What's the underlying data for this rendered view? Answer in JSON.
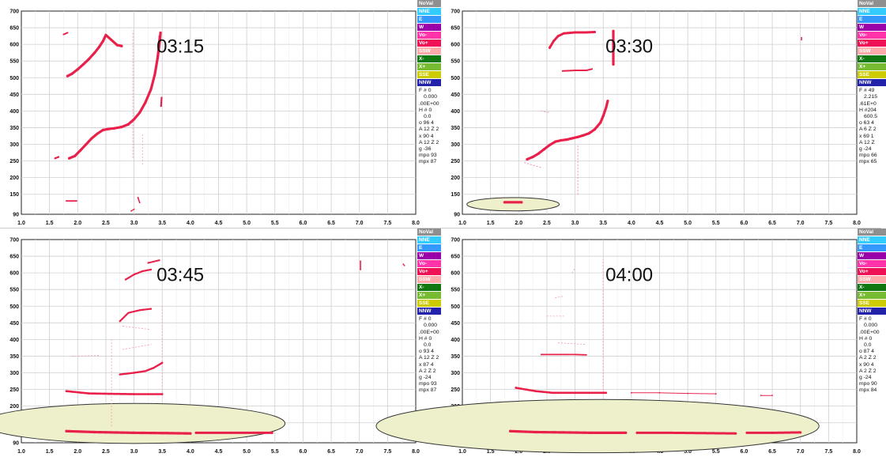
{
  "legend_items": [
    {
      "label": "NoVal",
      "color": "#8f8f8f"
    },
    {
      "label": "NNE",
      "color": "#33ccff"
    },
    {
      "label": "E",
      "color": "#3399ff"
    },
    {
      "label": "W",
      "color": "#9900aa"
    },
    {
      "label": "Vo-",
      "color": "#ff33aa"
    },
    {
      "label": "Vo+",
      "color": "#ee1155"
    },
    {
      "label": "SSW",
      "color": "#ffaaaa"
    },
    {
      "label": "X-",
      "color": "#117711"
    },
    {
      "label": "X+",
      "color": "#77bb33"
    },
    {
      "label": "SSE",
      "color": "#cccc00"
    },
    {
      "label": "NNW",
      "color": "#2222aa"
    }
  ],
  "colors": {
    "point": "#e8204a",
    "point_light": "#f29ab2",
    "ellipse_fill": "#eef0cc",
    "ellipse_stroke": "#333333"
  },
  "chart_data": [
    {
      "type": "scatter",
      "title": "03:15",
      "xlim": [
        1.0,
        8.0
      ],
      "ylim": [
        90,
        700
      ],
      "x_ticks": [
        "1.0",
        "1.5",
        "2.0",
        "2.5",
        "3.0",
        "3.5",
        "4.0",
        "4.5",
        "5.0",
        "5.5",
        "6.0",
        "6.5",
        "7.0",
        "7.5",
        "8.0"
      ],
      "y_ticks": [
        "90",
        "150",
        "200",
        "250",
        "300",
        "350",
        "400",
        "450",
        "500",
        "550",
        "600",
        "650",
        "700"
      ],
      "stats": [
        "F # 0",
        "0.000",
        ".00E+00",
        "H # 0",
        "0.0",
        "o 96 4",
        "A 12 Z 2",
        "x 90 4",
        "A 12 Z 2",
        "g -36",
        "mpo 93",
        "mpx 87"
      ],
      "series": [
        {
          "points": [
            [
              1.82,
              505
            ],
            [
              1.9,
              512
            ],
            [
              2.0,
              525
            ],
            [
              2.1,
              540
            ],
            [
              2.2,
              556
            ],
            [
              2.3,
              575
            ],
            [
              2.38,
              592
            ],
            [
              2.45,
              610
            ],
            [
              2.5,
              628
            ],
            [
              2.7,
              598
            ],
            [
              2.78,
              595
            ]
          ],
          "stroke": 3.2
        },
        {
          "points": [
            [
              1.85,
              258
            ],
            [
              1.95,
              265
            ],
            [
              2.05,
              282
            ],
            [
              2.15,
              300
            ],
            [
              2.25,
              318
            ],
            [
              2.35,
              332
            ],
            [
              2.45,
              343
            ],
            [
              2.55,
              346
            ],
            [
              2.65,
              348
            ],
            [
              2.78,
              352
            ],
            [
              2.9,
              360
            ],
            [
              3.0,
              375
            ],
            [
              3.1,
              395
            ],
            [
              3.2,
              425
            ],
            [
              3.3,
              465
            ],
            [
              3.37,
              510
            ],
            [
              3.42,
              560
            ],
            [
              3.46,
              615
            ],
            [
              3.47,
              635
            ]
          ],
          "stroke": 3.2
        },
        {
          "points": [
            [
              3.38,
              520
            ],
            [
              3.43,
              585
            ],
            [
              3.45,
              625
            ]
          ],
          "stroke": 2.0
        },
        {
          "points": [
            [
              3.48,
              415
            ],
            [
              3.49,
              440
            ]
          ],
          "stroke": 2.2
        },
        {
          "points": [
            [
              1.6,
              258
            ],
            [
              1.66,
              262
            ]
          ],
          "stroke": 2.2
        },
        {
          "points": [
            [
              1.8,
              130
            ],
            [
              1.98,
              130
            ]
          ],
          "stroke": 1.8
        },
        {
          "points": [
            [
              3.07,
              140
            ],
            [
              3.1,
              125
            ]
          ],
          "stroke": 1.6
        },
        {
          "points": [
            [
              2.95,
              100
            ],
            [
              3.0,
              105
            ]
          ],
          "stroke": 1.2
        },
        {
          "points": [
            [
              1.75,
              630
            ],
            [
              1.82,
              635
            ]
          ],
          "stroke": 2.0
        }
      ],
      "faint": [
        {
          "points": [
            [
              2.98,
              260
            ],
            [
              2.98,
              640
            ]
          ],
          "stroke": 1.0
        },
        {
          "points": [
            [
              3.15,
              240
            ],
            [
              3.15,
              330
            ]
          ],
          "stroke": 0.8
        }
      ],
      "highlights": []
    },
    {
      "type": "scatter",
      "title": "03:30",
      "xlim": [
        1.0,
        8.0
      ],
      "ylim": [
        90,
        700
      ],
      "x_ticks": [
        "1.0",
        "1.5",
        "2.0",
        "2.5",
        "3.0",
        "3.5",
        "4.0",
        "4.5",
        "5.0",
        "5.5",
        "6.0",
        "6.5",
        "7.0",
        "7.5",
        "8.0"
      ],
      "y_ticks": [
        "90",
        "150",
        "200",
        "250",
        "300",
        "350",
        "400",
        "450",
        "500",
        "550",
        "600",
        "650",
        "700"
      ],
      "stats": [
        "F # 49",
        "2.215",
        ".61E+0",
        "H #204",
        "600.5",
        "o 63 4",
        "A 6 Z 2",
        "x 69 1",
        "A 12 Z",
        "g -24",
        "mpo 66",
        "mpx 65"
      ],
      "series": [
        {
          "points": [
            [
              2.15,
              255
            ],
            [
              2.25,
              262
            ],
            [
              2.35,
              272
            ],
            [
              2.45,
              285
            ],
            [
              2.55,
              298
            ],
            [
              2.65,
              308
            ],
            [
              2.75,
              312
            ],
            [
              2.85,
              314
            ],
            [
              2.95,
              318
            ],
            [
              3.05,
              322
            ],
            [
              3.15,
              327
            ],
            [
              3.25,
              333
            ],
            [
              3.35,
              345
            ],
            [
              3.45,
              365
            ],
            [
              3.5,
              385
            ],
            [
              3.55,
              410
            ],
            [
              3.58,
              430
            ]
          ],
          "stroke": 3.2
        },
        {
          "points": [
            [
              2.55,
              590
            ],
            [
              2.62,
              610
            ],
            [
              2.7,
              625
            ],
            [
              2.8,
              633
            ],
            [
              3.0,
              636
            ],
            [
              3.2,
              636
            ],
            [
              3.35,
              637
            ]
          ],
          "stroke": 3.0
        },
        {
          "points": [
            [
              2.78,
              520
            ],
            [
              3.0,
              522
            ],
            [
              3.2,
              522
            ],
            [
              3.3,
              526
            ]
          ],
          "stroke": 2.0
        },
        {
          "points": [
            [
              3.68,
              540
            ],
            [
              3.68,
              640
            ]
          ],
          "stroke": 3.2
        },
        {
          "points": [
            [
              7.02,
              620
            ],
            [
              7.02,
              614
            ]
          ],
          "stroke": 1.4
        },
        {
          "points": [
            [
              1.75,
              126
            ],
            [
              2.05,
              126
            ]
          ],
          "stroke": 3.2
        }
      ],
      "faint": [
        {
          "points": [
            [
              3.05,
              150
            ],
            [
              3.05,
              300
            ]
          ],
          "stroke": 1.0
        },
        {
          "points": [
            [
              2.1,
              245
            ],
            [
              2.4,
              230
            ]
          ],
          "stroke": 1.0
        },
        {
          "points": [
            [
              2.4,
              400
            ],
            [
              2.55,
              395
            ]
          ],
          "stroke": 1.0
        }
      ],
      "highlights": [
        {
          "cx": 1.9,
          "cy": 120,
          "rx": 0.82,
          "ry": 20
        }
      ]
    },
    {
      "type": "scatter",
      "title": "03:45",
      "xlim": [
        1.0,
        8.0
      ],
      "ylim": [
        90,
        700
      ],
      "x_ticks": [
        "1.0",
        "1.5",
        "2.0",
        "2.5",
        "3.0",
        "3.5",
        "4.0",
        "4.5",
        "5.0",
        "5.5",
        "6.0",
        "6.5",
        "7.0",
        "7.5",
        "8.0"
      ],
      "y_ticks": [
        "90",
        "150",
        "200",
        "250",
        "300",
        "350",
        "400",
        "450",
        "500",
        "550",
        "600",
        "650",
        "700"
      ],
      "stats": [
        "F # 0",
        "0.000",
        ".00E+00",
        "H # 0",
        "0.0",
        "o 93 4",
        "A 12 Z 2",
        "x 87 4",
        "A 2 Z 2",
        "g -24",
        "mpo 93",
        "mpx 87"
      ],
      "series": [
        {
          "points": [
            [
              1.8,
              125
            ],
            [
              2.3,
              122
            ],
            [
              3.0,
              120
            ],
            [
              3.6,
              119
            ],
            [
              4.0,
              118
            ]
          ],
          "stroke": 3.2
        },
        {
          "points": [
            [
              4.1,
              120
            ],
            [
              4.7,
              120
            ],
            [
              5.2,
              120
            ],
            [
              5.45,
              120
            ]
          ],
          "stroke": 3.0
        },
        {
          "points": [
            [
              1.8,
              245
            ],
            [
              2.2,
              238
            ],
            [
              2.6,
              237
            ],
            [
              3.0,
              236
            ],
            [
              3.5,
              236
            ]
          ],
          "stroke": 2.6
        },
        {
          "points": [
            [
              2.75,
              295
            ],
            [
              3.0,
              300
            ],
            [
              3.2,
              305
            ],
            [
              3.35,
              315
            ],
            [
              3.5,
              330
            ]
          ],
          "stroke": 2.4
        },
        {
          "points": [
            [
              2.75,
              455
            ],
            [
              2.9,
              480
            ],
            [
              3.1,
              488
            ],
            [
              3.3,
              492
            ]
          ],
          "stroke": 2.2
        },
        {
          "points": [
            [
              2.85,
              580
            ],
            [
              3.0,
              595
            ],
            [
              3.15,
              605
            ],
            [
              3.3,
              610
            ]
          ],
          "stroke": 2.2
        },
        {
          "points": [
            [
              3.25,
              630
            ],
            [
              3.45,
              638
            ]
          ],
          "stroke": 2.0
        },
        {
          "points": [
            [
              7.02,
              610
            ],
            [
              7.02,
              635
            ]
          ],
          "stroke": 1.6
        },
        {
          "points": [
            [
              7.78,
              626
            ],
            [
              7.8,
              622
            ]
          ],
          "stroke": 1.2
        }
      ],
      "faint": [
        {
          "points": [
            [
              2.6,
              140
            ],
            [
              2.6,
              400
            ]
          ],
          "stroke": 0.8
        },
        {
          "points": [
            [
              3.5,
              240
            ],
            [
              3.5,
              500
            ]
          ],
          "stroke": 0.8
        },
        {
          "points": [
            [
              1.9,
              350
            ],
            [
              2.4,
              352
            ]
          ],
          "stroke": 0.8
        },
        {
          "points": [
            [
              2.8,
              440
            ],
            [
              3.3,
              430
            ]
          ],
          "stroke": 0.8
        },
        {
          "points": [
            [
              2.8,
              370
            ],
            [
              3.3,
              385
            ]
          ],
          "stroke": 0.8
        }
      ],
      "highlights": [
        {
          "cx": 3.0,
          "cy": 148,
          "rx": 2.68,
          "ry": 60
        }
      ]
    },
    {
      "type": "scatter",
      "title": "04:00",
      "xlim": [
        1.0,
        8.0
      ],
      "ylim": [
        90,
        700
      ],
      "x_ticks": [
        "1.0",
        "1.5",
        "2.0",
        "2.5",
        "3.0",
        "3.5",
        "4.0",
        "4.5",
        "5.0",
        "5.5",
        "6.0",
        "6.5",
        "7.0",
        "7.5",
        "8.0"
      ],
      "y_ticks": [
        "90",
        "150",
        "200",
        "250",
        "300",
        "350",
        "400",
        "450",
        "500",
        "550",
        "600",
        "650",
        "700"
      ],
      "stats": [
        "F # 0",
        "0.000",
        ".00E+00",
        "H # 0",
        "0.0",
        "o 87 4",
        "A 2 Z 2",
        "x 90 4",
        "A 2 Z 2",
        "g -24",
        "mpo 90",
        "mpx 84"
      ],
      "series": [
        {
          "points": [
            [
              1.85,
              125
            ],
            [
              2.3,
              122
            ],
            [
              2.8,
              121
            ],
            [
              3.3,
              120
            ],
            [
              3.9,
              120
            ]
          ],
          "stroke": 3.2
        },
        {
          "points": [
            [
              4.1,
              120
            ],
            [
              4.7,
              120
            ],
            [
              5.3,
              119
            ],
            [
              5.85,
              118
            ]
          ],
          "stroke": 3.0
        },
        {
          "points": [
            [
              6.05,
              120
            ],
            [
              6.5,
              120
            ],
            [
              7.0,
              121
            ]
          ],
          "stroke": 3.0
        },
        {
          "points": [
            [
              1.95,
              255
            ],
            [
              2.3,
              245
            ],
            [
              2.6,
              240
            ],
            [
              3.0,
              240
            ],
            [
              3.55,
              240
            ]
          ],
          "stroke": 2.6
        },
        {
          "points": [
            [
              2.4,
              355
            ],
            [
              3.0,
              355
            ],
            [
              3.2,
              354
            ]
          ],
          "stroke": 1.8
        },
        {
          "points": [
            [
              4.0,
              240
            ],
            [
              4.5,
              240
            ],
            [
              5.0,
              238
            ],
            [
              5.5,
              237
            ]
          ],
          "stroke": 1.0
        },
        {
          "points": [
            [
              6.3,
              232
            ],
            [
              6.5,
              232
            ]
          ],
          "stroke": 1.0
        }
      ],
      "faint": [
        {
          "points": [
            [
              3.5,
              240
            ],
            [
              3.5,
              640
            ]
          ],
          "stroke": 0.9
        },
        {
          "points": [
            [
              2.95,
              600
            ],
            [
              3.0,
              615
            ]
          ],
          "stroke": 0.8
        },
        {
          "points": [
            [
              2.5,
              470
            ],
            [
              2.8,
              470
            ]
          ],
          "stroke": 0.8
        },
        {
          "points": [
            [
              2.65,
              525
            ],
            [
              2.8,
              530
            ]
          ],
          "stroke": 0.8
        },
        {
          "points": [
            [
              2.7,
              390
            ],
            [
              3.2,
              385
            ]
          ],
          "stroke": 0.8
        }
      ],
      "highlights": [
        {
          "cx": 3.4,
          "cy": 140,
          "rx": 3.93,
          "ry": 80
        }
      ]
    }
  ]
}
